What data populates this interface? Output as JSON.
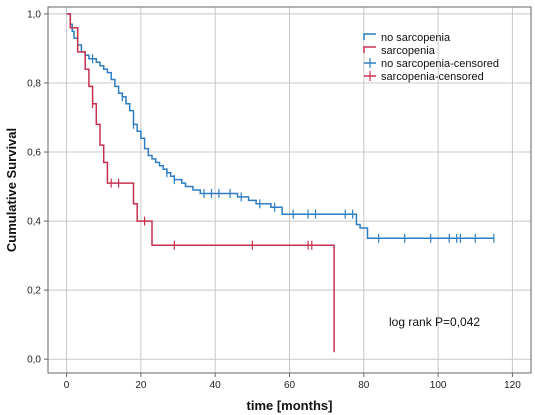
{
  "chart_data": {
    "type": "line",
    "subtype": "kaplan-meier step",
    "xlabel": "time [months]",
    "ylabel": "Cumulative Survival",
    "xlim": [
      -5,
      125
    ],
    "ylim": [
      -0.04,
      1.02
    ],
    "xticks": [
      0,
      20,
      40,
      60,
      80,
      100,
      120
    ],
    "yticks": [
      0.0,
      0.2,
      0.4,
      0.6,
      0.8,
      1.0
    ],
    "ytick_labels": [
      "0,0",
      "0,2",
      "0,4",
      "0,6",
      "0,8",
      "1,0"
    ],
    "grid": true,
    "legend_position": "top-right",
    "annotation": "log rank P=0,042",
    "legend": [
      {
        "label": "no sarcopenia",
        "color": "#2e7dc4",
        "kind": "line"
      },
      {
        "label": "sarcopenia",
        "color": "#c8304e",
        "kind": "line"
      },
      {
        "label": "no sarcopenia-censored",
        "color": "#2e7dc4",
        "kind": "censor"
      },
      {
        "label": "sarcopenia-censored",
        "color": "#c8304e",
        "kind": "censor"
      }
    ],
    "series": [
      {
        "name": "no sarcopenia",
        "color": "#2e7dc4",
        "steps": [
          [
            0,
            1.0
          ],
          [
            1,
            0.97
          ],
          [
            1.5,
            0.95
          ],
          [
            2,
            0.93
          ],
          [
            3,
            0.91
          ],
          [
            4,
            0.89
          ],
          [
            5,
            0.88
          ],
          [
            6,
            0.87
          ],
          [
            8,
            0.86
          ],
          [
            9,
            0.85
          ],
          [
            10,
            0.84
          ],
          [
            11,
            0.83
          ],
          [
            12,
            0.81
          ],
          [
            13,
            0.79
          ],
          [
            14,
            0.77
          ],
          [
            15,
            0.76
          ],
          [
            16,
            0.74
          ],
          [
            17,
            0.72
          ],
          [
            18,
            0.68
          ],
          [
            19,
            0.66
          ],
          [
            20,
            0.64
          ],
          [
            21,
            0.61
          ],
          [
            22,
            0.59
          ],
          [
            23,
            0.58
          ],
          [
            24,
            0.57
          ],
          [
            25,
            0.56
          ],
          [
            26,
            0.55
          ],
          [
            27,
            0.54
          ],
          [
            28,
            0.53
          ],
          [
            29,
            0.52
          ],
          [
            31,
            0.51
          ],
          [
            32,
            0.5
          ],
          [
            34,
            0.49
          ],
          [
            36,
            0.48
          ],
          [
            46,
            0.47
          ],
          [
            49,
            0.46
          ],
          [
            51,
            0.45
          ],
          [
            55,
            0.44
          ],
          [
            58,
            0.42
          ],
          [
            78,
            0.39
          ],
          [
            79,
            0.38
          ],
          [
            81,
            0.35
          ],
          [
            115,
            0.35
          ]
        ],
        "censored": [
          [
            3,
            0.91
          ],
          [
            7,
            0.87
          ],
          [
            15,
            0.76
          ],
          [
            18,
            0.68
          ],
          [
            27,
            0.54
          ],
          [
            29,
            0.52
          ],
          [
            37,
            0.48
          ],
          [
            39,
            0.48
          ],
          [
            41,
            0.48
          ],
          [
            44,
            0.48
          ],
          [
            47,
            0.47
          ],
          [
            52,
            0.45
          ],
          [
            56,
            0.44
          ],
          [
            61,
            0.42
          ],
          [
            65,
            0.42
          ],
          [
            67,
            0.42
          ],
          [
            75,
            0.42
          ],
          [
            77,
            0.42
          ],
          [
            84,
            0.35
          ],
          [
            91,
            0.35
          ],
          [
            98,
            0.35
          ],
          [
            103,
            0.35
          ],
          [
            105,
            0.35
          ],
          [
            106,
            0.35
          ],
          [
            110,
            0.35
          ],
          [
            115,
            0.35
          ]
        ]
      },
      {
        "name": "sarcopenia",
        "color": "#c8304e",
        "steps": [
          [
            0,
            1.0
          ],
          [
            1,
            0.96
          ],
          [
            3,
            0.89
          ],
          [
            5,
            0.84
          ],
          [
            6,
            0.79
          ],
          [
            7,
            0.74
          ],
          [
            8,
            0.68
          ],
          [
            9,
            0.62
          ],
          [
            10,
            0.57
          ],
          [
            11,
            0.51
          ],
          [
            18,
            0.45
          ],
          [
            19,
            0.4
          ],
          [
            23,
            0.33
          ],
          [
            72,
            0.02
          ]
        ],
        "censored": [
          [
            7,
            0.74
          ],
          [
            12,
            0.51
          ],
          [
            14,
            0.51
          ],
          [
            21,
            0.4
          ],
          [
            29,
            0.33
          ],
          [
            50,
            0.33
          ],
          [
            65,
            0.33
          ],
          [
            66,
            0.33
          ]
        ]
      }
    ]
  }
}
